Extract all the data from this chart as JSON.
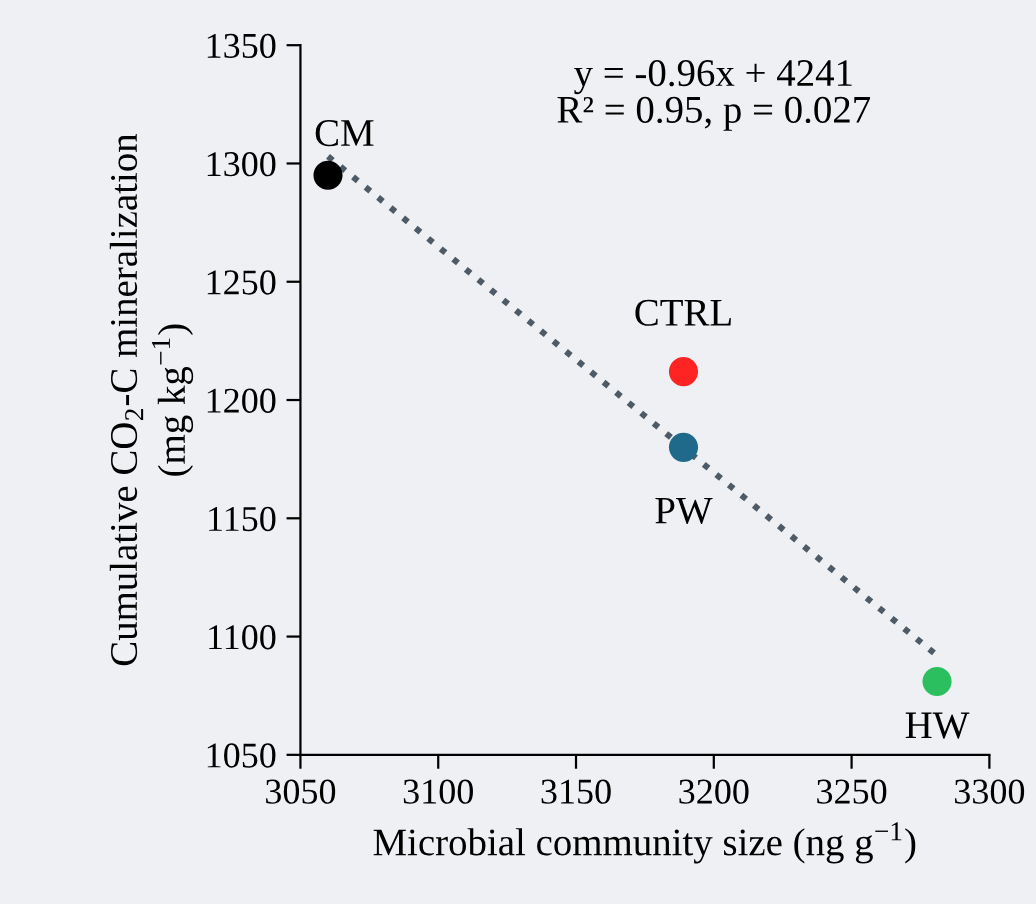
{
  "chart_data": {
    "type": "scatter",
    "xlabel": "Microbial community size (ng g$^{−1}$)",
    "ylabel": "Cumulative CO$_{2}$-C mineralization\n(mg kg$^{−1}$)",
    "xlim": [
      3050,
      3300
    ],
    "xticks": [
      3050,
      3100,
      3150,
      3200,
      3250,
      3300
    ],
    "ylim": [
      1050,
      1350
    ],
    "yticks": [
      1050,
      1100,
      1150,
      1200,
      1250,
      1300,
      1350
    ],
    "grid": false,
    "legend": false,
    "series": [
      {
        "x": [
          3060,
          3189,
          3189,
          3281
        ],
        "values": [
          1295,
          1212,
          1180,
          1081
        ],
        "colors": [
          "#000000",
          "#ff2424",
          "#1f6a8a",
          "#2bbf5f"
        ],
        "marker": "circle"
      },
      {
        "type": "line",
        "x": [
          3060,
          3281
        ],
        "values": [
          1303,
          1092
        ],
        "color": "#4e5b66",
        "line_style": "dotted",
        "marker": "none"
      }
    ],
    "annotations": [
      {
        "text": "CM",
        "x": 3060,
        "y": 1295
      },
      {
        "text": "CTRL",
        "x": 3189,
        "y": 1212
      },
      {
        "text": "PW",
        "x": 3189,
        "y": 1180
      },
      {
        "text": "HW",
        "x": 3281,
        "y": 1081
      },
      "y = -0.96x + 4241\nR² = 0.95, p = 0.027"
    ]
  }
}
